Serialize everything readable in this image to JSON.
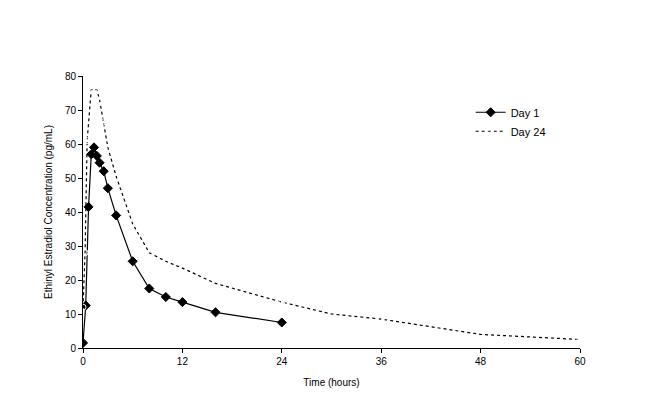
{
  "chart_data": {
    "type": "line",
    "x_label": "Time (hours)",
    "y_label": "Ethinyl Estradiol Concentration (pg/mL)",
    "xlim": [
      0,
      60
    ],
    "xticks": [
      0,
      12,
      24,
      36,
      48,
      60
    ],
    "ylim": [
      0,
      80
    ],
    "yticks": [
      0,
      10,
      20,
      30,
      40,
      50,
      60,
      70,
      80
    ],
    "grid": false,
    "legend": "top right",
    "series": [
      {
        "name": "Day 1",
        "color": "#000000",
        "marker": "diamond",
        "line_style": "solid",
        "x": [
          0,
          0.33,
          0.67,
          1,
          1.33,
          1.67,
          2,
          2.5,
          3,
          4,
          6,
          8,
          10,
          12,
          16,
          24
        ],
        "values": [
          1.5,
          12.5,
          41.5,
          57,
          59,
          56.5,
          54.5,
          52,
          47,
          39,
          25.5,
          17.5,
          15,
          13.5,
          10.5,
          7.5
        ]
      },
      {
        "name": "Day 24",
        "color": "#000000",
        "marker": "circle-open",
        "line_style": "dot",
        "x": [
          0,
          0.25,
          0.5,
          1,
          1.33,
          1.67,
          2,
          2.5,
          3,
          4,
          6,
          8,
          10,
          12,
          16,
          24,
          30,
          36,
          48,
          60
        ],
        "values": [
          12,
          28,
          61,
          76,
          76,
          76,
          73,
          66.5,
          59,
          50.5,
          36.5,
          28,
          25.5,
          23.5,
          19,
          13.5,
          10,
          8.5,
          4,
          2.5
        ]
      }
    ]
  }
}
